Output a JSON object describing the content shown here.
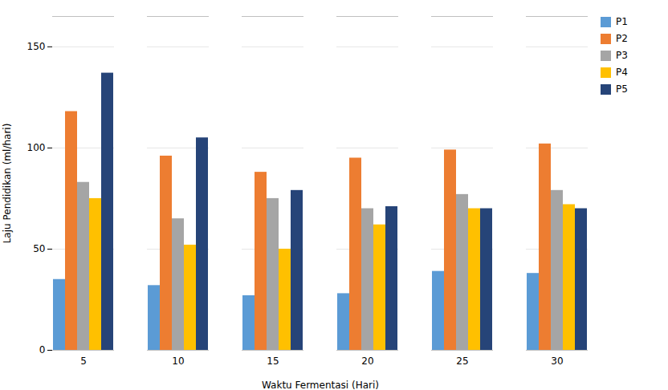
{
  "chart_data": {
    "type": "bar",
    "xlabel": "Waktu Fermentasi (Hari)",
    "ylabel": "Laju Pendidikan (ml/hari)",
    "categories": [
      5,
      10,
      15,
      20,
      25,
      30
    ],
    "series": [
      {
        "name": "P1",
        "color": "#5B9BD5",
        "values": [
          35,
          32,
          27,
          28,
          39,
          38
        ]
      },
      {
        "name": "P2",
        "color": "#ED7D31",
        "values": [
          118,
          96,
          88,
          95,
          99,
          102
        ]
      },
      {
        "name": "P3",
        "color": "#A5A5A5",
        "values": [
          83,
          65,
          75,
          70,
          77,
          79
        ]
      },
      {
        "name": "P4",
        "color": "#FFC000",
        "values": [
          75,
          52,
          50,
          62,
          70,
          72
        ]
      },
      {
        "name": "P5",
        "color": "#264478",
        "values": [
          137,
          105,
          79,
          71,
          70,
          70
        ]
      }
    ],
    "ylim": [
      0,
      165
    ],
    "yticks": [
      0,
      50,
      100,
      150
    ],
    "grid": true,
    "legend": "upper right"
  }
}
